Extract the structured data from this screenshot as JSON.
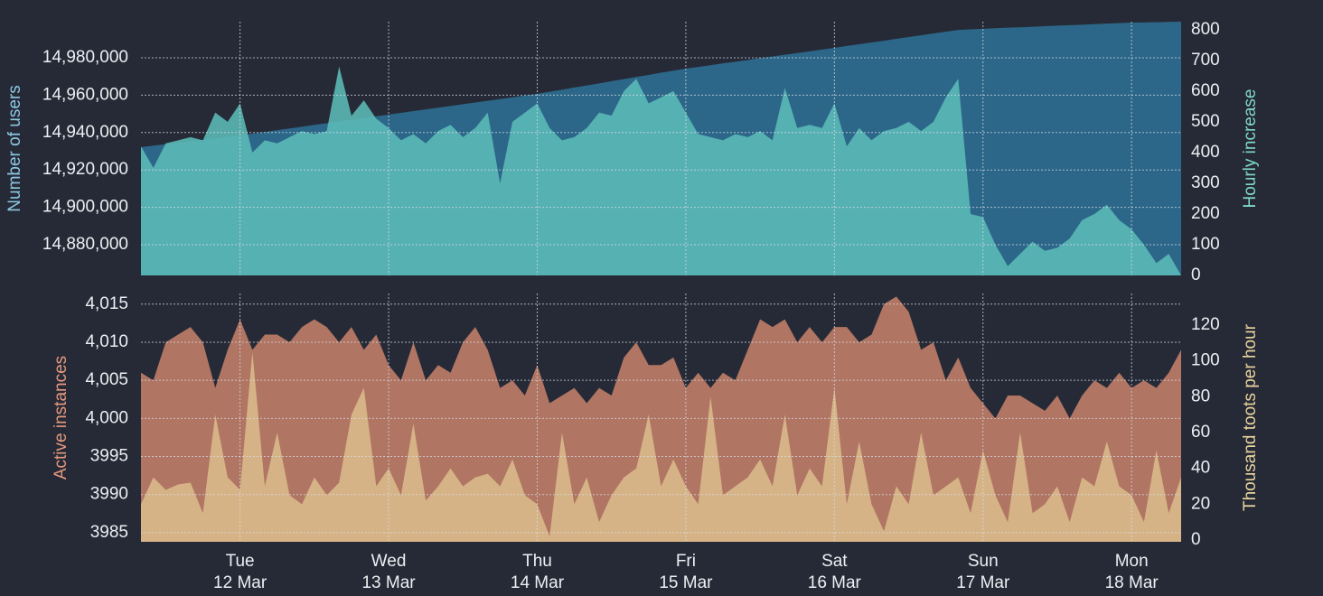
{
  "chart_data": [
    {
      "type": "area",
      "y_label": "Number of users",
      "y2_label": "Hourly increase",
      "ylim": [
        14863600,
        14999300
      ],
      "yticks": [
        {
          "value": 14880000,
          "label": "14,880,000"
        },
        {
          "value": 14900000,
          "label": "14,900,000"
        },
        {
          "value": 14920000,
          "label": "14,920,000"
        },
        {
          "value": 14940000,
          "label": "14,940,000"
        },
        {
          "value": 14960000,
          "label": "14,960,000"
        },
        {
          "value": 14980000,
          "label": "14,980,000"
        }
      ],
      "y2lim": [
        0,
        826
      ],
      "y2ticks": [
        0,
        100,
        200,
        300,
        400,
        500,
        600,
        700,
        800
      ],
      "grid": true,
      "series": [
        {
          "name": "Number of users",
          "color": "#2c6789",
          "opacity": 1,
          "values": [
            14932200,
            14933000,
            14933800,
            14934600,
            14935400,
            14936100,
            14936900,
            14937700,
            14938500,
            14939400,
            14940300,
            14941300,
            14942200,
            14943100,
            14944100,
            14945000,
            14945900,
            14946800,
            14947700,
            14948700,
            14949600,
            14950500,
            14951500,
            14952400,
            14953300,
            14954200,
            14955200,
            14956100,
            14957000,
            14957900,
            14958800,
            14959800,
            14960700,
            14961800,
            14962900,
            14964100,
            14965200,
            14966300,
            14967500,
            14968600,
            14969700,
            14970800,
            14972000,
            14973100,
            14974200,
            14975100,
            14976000,
            14977000,
            14977900,
            14978800,
            14979800,
            14980700,
            14981600,
            14982500,
            14983400,
            14984400,
            14985300,
            14986300,
            14987200,
            14988200,
            14989100,
            14990100,
            14991100,
            14992000,
            14993000,
            14993900,
            14994900,
            14995200,
            14995500,
            14995800,
            14996100,
            14996300,
            14996600,
            14996900,
            14997200,
            14997400,
            14997700,
            14998000,
            14998300,
            14998500,
            14998800,
            14998900,
            14999000,
            14999200,
            14999300
          ]
        },
        {
          "name": "Hourly increase",
          "axis": "y2",
          "color": "#5cbcb8",
          "opacity": 0.88,
          "values": [
            420,
            350,
            430,
            440,
            450,
            440,
            530,
            500,
            560,
            400,
            440,
            430,
            450,
            470,
            460,
            470,
            680,
            520,
            570,
            510,
            480,
            440,
            460,
            430,
            470,
            490,
            450,
            480,
            530,
            300,
            500,
            530,
            560,
            480,
            440,
            450,
            480,
            530,
            520,
            600,
            640,
            560,
            580,
            600,
            530,
            460,
            450,
            440,
            460,
            450,
            470,
            440,
            610,
            480,
            490,
            480,
            560,
            420,
            480,
            440,
            470,
            480,
            500,
            470,
            500,
            580,
            640,
            200,
            190,
            100,
            30,
            70,
            110,
            80,
            90,
            120,
            180,
            200,
            230,
            180,
            150,
            100,
            40,
            70,
            0
          ]
        }
      ]
    },
    {
      "type": "area",
      "y_label": "Active instances",
      "y2_label": "Thousand toots per hour",
      "categories": [
        null,
        null,
        null,
        null,
        null,
        null,
        null,
        null,
        "Tue",
        null,
        null,
        null,
        null,
        null,
        null,
        null,
        null,
        null,
        null,
        null,
        "Wed",
        null,
        null,
        null,
        null,
        null,
        null,
        null,
        null,
        null,
        null,
        null,
        "Thu",
        null,
        null,
        null,
        null,
        null,
        null,
        null,
        null,
        null,
        null,
        null,
        "Fri",
        null,
        null,
        null,
        null,
        null,
        null,
        null,
        null,
        null,
        null,
        null,
        "Sat",
        null,
        null,
        null,
        null,
        null,
        null,
        null,
        null,
        null,
        null,
        null,
        "Sun",
        null,
        null,
        null,
        null,
        null,
        null,
        null,
        null,
        null,
        null,
        null,
        "Mon",
        null,
        null,
        null,
        null
      ],
      "category_dates": [
        null,
        null,
        null,
        null,
        null,
        null,
        null,
        null,
        "12 Mar",
        null,
        null,
        null,
        null,
        null,
        null,
        null,
        null,
        null,
        null,
        null,
        "13 Mar",
        null,
        null,
        null,
        null,
        null,
        null,
        null,
        null,
        null,
        null,
        null,
        "14 Mar",
        null,
        null,
        null,
        null,
        null,
        null,
        null,
        null,
        null,
        null,
        null,
        "15 Mar",
        null,
        null,
        null,
        null,
        null,
        null,
        null,
        null,
        null,
        null,
        null,
        "16 Mar",
        null,
        null,
        null,
        null,
        null,
        null,
        null,
        null,
        null,
        null,
        null,
        "17 Mar",
        null,
        null,
        null,
        null,
        null,
        null,
        null,
        null,
        null,
        null,
        null,
        "18 Mar",
        null,
        null,
        null,
        null
      ],
      "ylim": [
        3983.8,
        4016.4
      ],
      "yticks": [
        3985,
        3990,
        3995,
        {
          "value": 4000,
          "label": "4,000"
        },
        {
          "value": 4005,
          "label": "4,005"
        },
        {
          "value": 4010,
          "label": "4,010"
        },
        {
          "value": 4015,
          "label": "4,015"
        }
      ],
      "y2lim": [
        -1,
        137.6
      ],
      "y2ticks": [
        0,
        20,
        40,
        60,
        80,
        100,
        120
      ],
      "grid": true,
      "series": [
        {
          "name": "Active instances",
          "color": "#b07563",
          "opacity": 1,
          "values": [
            4006,
            4005,
            4010,
            4011,
            4012,
            4010,
            4004,
            4009,
            4013,
            4009,
            4011,
            4011,
            4010,
            4012,
            4013,
            4012,
            4010,
            4012,
            4009,
            4011,
            4007,
            4005,
            4010,
            4005,
            4007,
            4006,
            4010,
            4012,
            4009,
            4004,
            4005,
            4003,
            4007,
            4002,
            4003,
            4004,
            4002,
            4004,
            4003,
            4008,
            4010,
            4007,
            4007,
            4008,
            4004,
            4006,
            4004,
            4006,
            4005,
            4009,
            4013,
            4012,
            4013,
            4010,
            4012,
            4010,
            4012,
            4012,
            4010,
            4011,
            4015,
            4016,
            4014,
            4009,
            4010,
            4005,
            4008,
            4004,
            4002,
            4000,
            4003,
            4003,
            4002,
            4001,
            4003,
            4000,
            4003,
            4005,
            4004,
            4006,
            4004,
            4005,
            4004,
            4006,
            4009
          ]
        },
        {
          "name": "Thousand toots per hour",
          "axis": "y2",
          "color": "#d9b889",
          "opacity": 0.92,
          "values": [
            20,
            35,
            28,
            31,
            32,
            15,
            70,
            35,
            28,
            105,
            30,
            60,
            25,
            20,
            35,
            25,
            32,
            70,
            85,
            30,
            40,
            25,
            65,
            22,
            30,
            40,
            30,
            35,
            37,
            30,
            45,
            25,
            20,
            2,
            60,
            20,
            35,
            10,
            25,
            35,
            40,
            70,
            30,
            45,
            30,
            20,
            80,
            25,
            30,
            35,
            45,
            30,
            70,
            25,
            40,
            30,
            85,
            20,
            55,
            20,
            5,
            30,
            20,
            60,
            25,
            30,
            35,
            15,
            50,
            25,
            10,
            60,
            15,
            20,
            30,
            10,
            35,
            30,
            55,
            30,
            25,
            10,
            50,
            15,
            35
          ]
        }
      ]
    }
  ]
}
